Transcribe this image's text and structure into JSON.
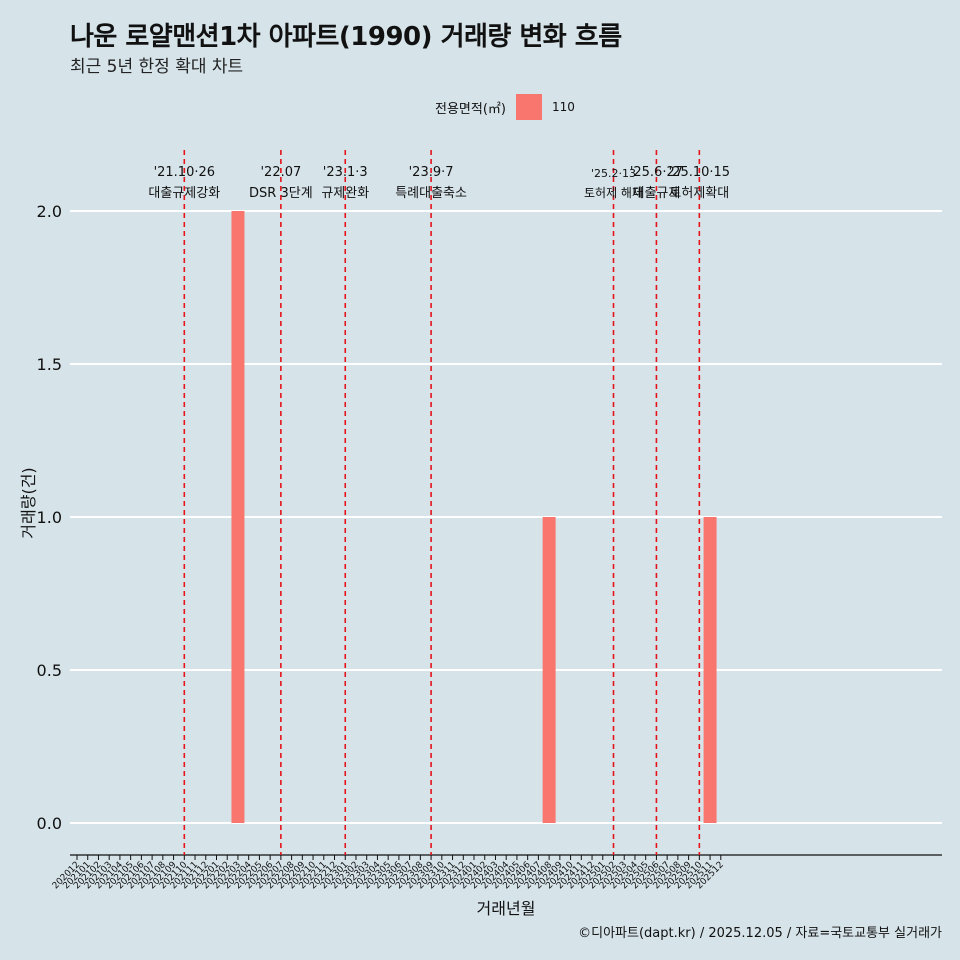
{
  "title": "나운 로얄맨션1차 아파트(1990) 거래량 변화 흐름",
  "subtitle": "최근 5년 한정 확대 차트",
  "caption": "©디아파트(dapt.kr) / 2025.12.05 / 자료=국토교통부 실거래가",
  "legend": {
    "title": "전용면적(㎡)",
    "items": [
      {
        "label": "110",
        "color": "#f8766d"
      }
    ]
  },
  "chart_data": {
    "type": "bar",
    "title": "나운 로얄맨션1차 아파트(1990) 거래량 변화 흐름",
    "xlabel": "거래년월",
    "ylabel": "거래량(건)",
    "ylim": [
      0,
      2
    ],
    "yticks": [
      "0.0",
      "0.5",
      "1.0",
      "1.5",
      "2.0"
    ],
    "categories": [
      "202012",
      "202101",
      "202102",
      "202103",
      "202104",
      "202105",
      "202106",
      "202107",
      "202108",
      "202109",
      "202110",
      "202111",
      "202112",
      "202201",
      "202202",
      "202203",
      "202204",
      "202205",
      "202206",
      "202207",
      "202208",
      "202209",
      "202210",
      "202211",
      "202212",
      "202301",
      "202302",
      "202303",
      "202304",
      "202305",
      "202306",
      "202307",
      "202308",
      "202309",
      "202310",
      "202311",
      "202312",
      "202401",
      "202402",
      "202403",
      "202404",
      "202405",
      "202406",
      "202407",
      "202408",
      "202409",
      "202410",
      "202411",
      "202412",
      "202501",
      "202502",
      "202503",
      "202504",
      "202505",
      "202506",
      "202507",
      "202508",
      "202509",
      "202510",
      "202511",
      "202512"
    ],
    "series": [
      {
        "name": "110",
        "color": "#f8766d",
        "points": [
          {
            "x": "202203",
            "y": 2
          },
          {
            "x": "202408",
            "y": 1
          },
          {
            "x": "202511",
            "y": 1
          }
        ]
      }
    ],
    "annotations": [
      {
        "x": "202110",
        "date": "'21.10·26",
        "text": "대출규제강화"
      },
      {
        "x": "202207",
        "date": "'22.07",
        "text": "DSR 3단계"
      },
      {
        "x": "202301",
        "date": "'23.1·3",
        "text": "규제완화"
      },
      {
        "x": "202309",
        "date": "'23.9·7",
        "text": "특례대출축소"
      },
      {
        "x": "202502",
        "date": "'25.2·13",
        "text": "토허제 해제"
      },
      {
        "x": "202506",
        "date": "'25.6·27",
        "text": "대출규제"
      },
      {
        "x": "202510",
        "date": "'25.10·15",
        "text": "토허제확대"
      }
    ]
  }
}
